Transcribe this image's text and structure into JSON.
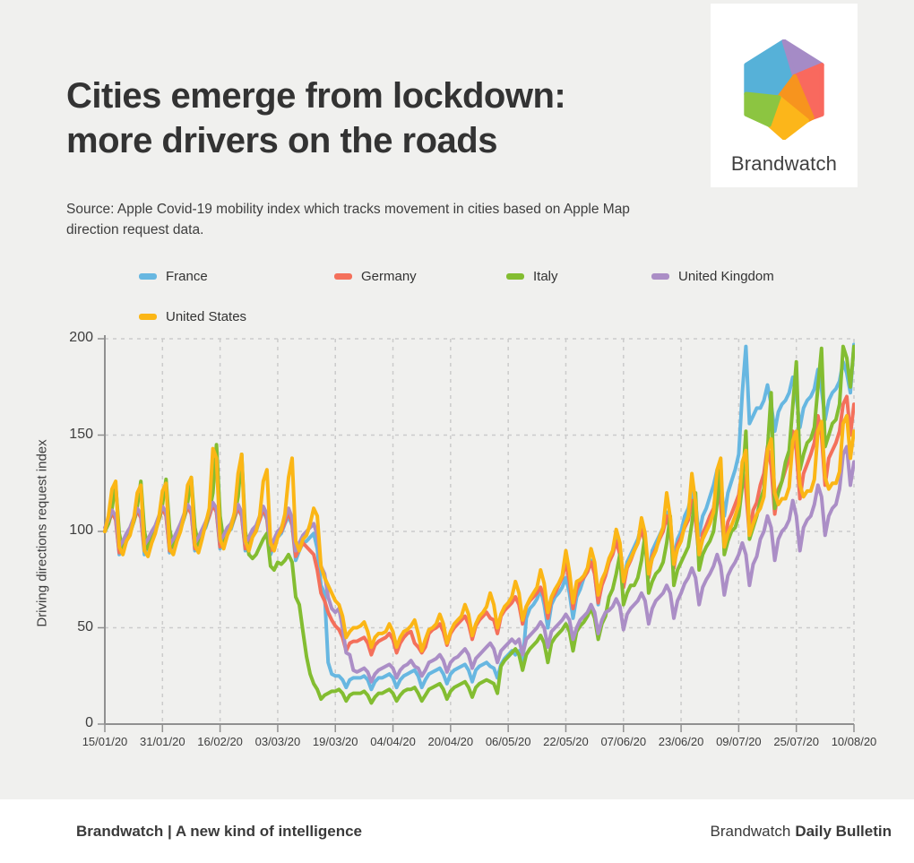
{
  "page": {
    "background": "#f0f0ee",
    "footer_background": "#ffffff"
  },
  "header": {
    "title_line1": "Cities emerge from lockdown:",
    "title_line2": "more drivers on the roads",
    "source": "Source: Apple Covid-19 mobility index which tracks movement in cities based on Apple Map direction request data."
  },
  "logo": {
    "brand_name": "Brandwatch",
    "facets": [
      {
        "name": "blue-facet",
        "color": "#56b1d8"
      },
      {
        "name": "purple-facet",
        "color": "#a58bc6"
      },
      {
        "name": "red-facet",
        "color": "#f9695e"
      },
      {
        "name": "orange-facet",
        "color": "#f7941e"
      },
      {
        "name": "yellow-facet",
        "color": "#fcb61a"
      },
      {
        "name": "green-facet",
        "color": "#8cc541"
      }
    ]
  },
  "chart_data": {
    "type": "line",
    "ylabel": "Driving directions request index",
    "ylim": [
      0,
      200
    ],
    "yticks": [
      0,
      50,
      100,
      150,
      200
    ],
    "x_tick_labels": [
      "15/01/20",
      "31/01/20",
      "16/02/20",
      "03/03/20",
      "19/03/20",
      "04/04/20",
      "20/04/20",
      "06/05/20",
      "22/05/20",
      "07/06/20",
      "23/06/20",
      "09/07/20",
      "25/07/20",
      "10/08/20"
    ],
    "x_tick_interval_days": 16,
    "x_days_total": 208,
    "frequency": "daily",
    "grid": true,
    "grid_color": "#cbcbcb",
    "axis_color": "#909090",
    "legend_position": "top",
    "series": [
      {
        "name": "France",
        "color": "#67b7e1",
        "values": [
          100,
          105,
          110,
          107,
          88,
          93,
          97,
          99,
          105,
          111,
          108,
          88,
          93,
          97,
          100,
          106,
          112,
          109,
          89,
          94,
          98,
          101,
          107,
          113,
          110,
          90,
          95,
          99,
          102,
          108,
          114,
          110,
          91,
          96,
          100,
          101,
          107,
          112,
          108,
          90,
          94,
          98,
          100,
          106,
          111,
          106,
          88,
          93,
          97,
          99,
          104,
          108,
          103,
          85,
          90,
          94,
          95,
          97,
          99,
          91,
          72,
          68,
          32,
          26,
          25,
          25,
          23,
          19,
          23,
          24,
          24,
          24,
          25,
          23,
          18,
          22,
          24,
          24,
          25,
          26,
          24,
          19,
          23,
          25,
          26,
          27,
          28,
          25,
          19,
          23,
          26,
          27,
          28,
          29,
          26,
          21,
          26,
          28,
          29,
          30,
          31,
          28,
          22,
          28,
          30,
          31,
          32,
          30,
          29,
          24,
          31,
          34,
          36,
          38,
          36,
          38,
          31,
          55,
          60,
          62,
          65,
          70,
          62,
          50,
          62,
          66,
          68,
          71,
          76,
          68,
          55,
          66,
          70,
          76,
          79,
          85,
          78,
          62,
          74,
          78,
          85,
          89,
          96,
          88,
          72,
          84,
          88,
          92,
          96,
          103,
          95,
          78,
          90,
          94,
          98,
          102,
          110,
          102,
          86,
          96,
          100,
          108,
          112,
          120,
          114,
          98,
          108,
          112,
          118,
          124,
          132,
          126,
          108,
          120,
          126,
          132,
          140,
          172,
          196,
          156,
          160,
          164,
          164,
          168,
          176,
          166,
          152,
          162,
          166,
          168,
          172,
          180,
          170,
          154,
          164,
          168,
          170,
          174,
          184,
          174,
          158,
          168,
          172,
          174,
          178,
          188,
          182,
          172,
          197
        ]
      },
      {
        "name": "Germany",
        "color": "#f4705b",
        "values": [
          100,
          104,
          110,
          106,
          89,
          93,
          97,
          100,
          105,
          111,
          107,
          90,
          94,
          98,
          101,
          106,
          112,
          108,
          90,
          94,
          98,
          102,
          107,
          113,
          109,
          91,
          95,
          99,
          103,
          108,
          114,
          110,
          92,
          96,
          100,
          102,
          107,
          113,
          108,
          91,
          95,
          99,
          101,
          106,
          112,
          107,
          90,
          94,
          98,
          100,
          105,
          110,
          104,
          87,
          91,
          94,
          92,
          90,
          88,
          80,
          68,
          64,
          58,
          54,
          51,
          49,
          45,
          38,
          42,
          43,
          43,
          44,
          45,
          42,
          36,
          41,
          43,
          44,
          45,
          47,
          44,
          37,
          42,
          45,
          47,
          48,
          42,
          40,
          37,
          40,
          47,
          49,
          50,
          52,
          48,
          41,
          47,
          50,
          52,
          54,
          56,
          52,
          44,
          51,
          54,
          56,
          58,
          55,
          54,
          47,
          56,
          59,
          61,
          63,
          66,
          62,
          52,
          61,
          64,
          66,
          68,
          71,
          66,
          55,
          65,
          68,
          72,
          76,
          84,
          74,
          60,
          70,
          74,
          76,
          79,
          84,
          78,
          63,
          72,
          77,
          84,
          88,
          95,
          88,
          71,
          81,
          85,
          90,
          94,
          101,
          94,
          76,
          87,
          91,
          96,
          100,
          108,
          100,
          81,
          93,
          97,
          102,
          106,
          116,
          107,
          86,
          99,
          103,
          108,
          112,
          124,
          114,
          92,
          105,
          109,
          114,
          119,
          132,
          122,
          98,
          111,
          115,
          124,
          130,
          144,
          134,
          109,
          122,
          126,
          132,
          138,
          152,
          142,
          117,
          130,
          135,
          140,
          146,
          160,
          150,
          124,
          138,
          142,
          146,
          152,
          166,
          170,
          150,
          166
        ]
      },
      {
        "name": "Italy",
        "color": "#83bd31",
        "values": [
          100,
          104,
          112,
          124,
          99,
          90,
          95,
          99,
          105,
          113,
          126,
          100,
          91,
          96,
          100,
          106,
          114,
          127,
          101,
          92,
          97,
          101,
          107,
          115,
          128,
          102,
          93,
          98,
          103,
          110,
          120,
          145,
          108,
          95,
          100,
          102,
          108,
          118,
          140,
          100,
          88,
          86,
          88,
          92,
          96,
          99,
          82,
          80,
          84,
          83,
          85,
          88,
          84,
          66,
          62,
          48,
          35,
          26,
          21,
          18,
          13,
          15,
          16,
          17,
          17,
          18,
          16,
          12,
          15,
          16,
          16,
          16,
          17,
          15,
          11,
          14,
          16,
          16,
          17,
          18,
          16,
          12,
          15,
          17,
          18,
          18,
          19,
          16,
          12,
          15,
          18,
          19,
          20,
          21,
          18,
          13,
          17,
          19,
          20,
          21,
          22,
          19,
          14,
          19,
          21,
          22,
          23,
          22,
          21,
          16,
          30,
          33,
          35,
          37,
          39,
          36,
          28,
          36,
          39,
          41,
          43,
          46,
          42,
          32,
          42,
          45,
          47,
          49,
          52,
          48,
          38,
          48,
          51,
          53,
          56,
          60,
          55,
          44,
          52,
          56,
          66,
          70,
          78,
          88,
          62,
          68,
          72,
          72,
          76,
          85,
          98,
          68,
          74,
          78,
          80,
          84,
          94,
          108,
          72,
          80,
          84,
          88,
          92,
          104,
          120,
          80,
          88,
          92,
          95,
          100,
          115,
          135,
          88,
          95,
          100,
          102,
          108,
          124,
          152,
          96,
          102,
          108,
          116,
          122,
          142,
          172,
          112,
          120,
          126,
          136,
          142,
          165,
          188,
          132,
          140,
          146,
          148,
          154,
          175,
          195,
          144,
          150,
          156,
          158,
          166,
          196,
          190,
          175,
          196
        ]
      },
      {
        "name": "United Kingdom",
        "color": "#ab8ec6",
        "values": [
          102,
          106,
          111,
          108,
          92,
          95,
          99,
          102,
          107,
          112,
          109,
          93,
          96,
          100,
          103,
          108,
          113,
          110,
          93,
          96,
          100,
          104,
          109,
          114,
          111,
          94,
          97,
          101,
          105,
          110,
          115,
          112,
          95,
          98,
          102,
          104,
          109,
          114,
          110,
          94,
          97,
          101,
          103,
          108,
          113,
          109,
          93,
          96,
          100,
          102,
          107,
          112,
          107,
          90,
          94,
          98,
          100,
          102,
          104,
          98,
          82,
          78,
          66,
          60,
          58,
          60,
          50,
          37,
          36,
          28,
          27,
          28,
          29,
          27,
          22,
          26,
          28,
          29,
          30,
          31,
          29,
          24,
          28,
          30,
          31,
          33,
          30,
          29,
          25,
          28,
          32,
          33,
          34,
          36,
          33,
          27,
          32,
          34,
          35,
          37,
          39,
          36,
          29,
          34,
          36,
          38,
          40,
          42,
          39,
          32,
          38,
          40,
          42,
          44,
          42,
          44,
          36,
          44,
          46,
          48,
          50,
          53,
          50,
          40,
          48,
          50,
          52,
          54,
          57,
          54,
          44,
          50,
          54,
          56,
          58,
          62,
          58,
          47,
          54,
          58,
          59,
          61,
          65,
          61,
          49,
          57,
          60,
          62,
          64,
          68,
          64,
          52,
          60,
          64,
          66,
          68,
          72,
          68,
          55,
          64,
          68,
          73,
          76,
          81,
          76,
          62,
          71,
          75,
          78,
          82,
          88,
          82,
          67,
          77,
          81,
          84,
          88,
          94,
          88,
          72,
          83,
          87,
          96,
          100,
          108,
          102,
          85,
          96,
          100,
          102,
          106,
          116,
          108,
          90,
          102,
          106,
          108,
          114,
          124,
          118,
          98,
          108,
          112,
          114,
          122,
          140,
          144,
          124,
          136
        ]
      },
      {
        "name": "United States",
        "color": "#fbb616",
        "values": [
          100,
          108,
          122,
          126,
          92,
          88,
          95,
          98,
          106,
          120,
          124,
          90,
          87,
          94,
          99,
          107,
          121,
          125,
          91,
          88,
          95,
          100,
          108,
          124,
          128,
          93,
          89,
          96,
          104,
          112,
          143,
          138,
          96,
          91,
          98,
          102,
          110,
          130,
          140,
          95,
          90,
          97,
          100,
          108,
          126,
          132,
          94,
          90,
          97,
          101,
          109,
          128,
          138,
          95,
          90,
          96,
          98,
          104,
          112,
          108,
          82,
          76,
          72,
          68,
          64,
          62,
          56,
          45,
          48,
          50,
          50,
          51,
          53,
          48,
          40,
          45,
          47,
          47,
          48,
          52,
          48,
          40,
          45,
          48,
          49,
          51,
          54,
          47,
          38,
          44,
          49,
          50,
          52,
          57,
          52,
          42,
          48,
          52,
          54,
          56,
          62,
          57,
          46,
          52,
          56,
          58,
          61,
          68,
          62,
          50,
          57,
          61,
          63,
          66,
          74,
          68,
          54,
          61,
          65,
          68,
          71,
          80,
          73,
          58,
          66,
          70,
          73,
          77,
          90,
          79,
          63,
          74,
          75,
          77,
          81,
          91,
          84,
          67,
          75,
          79,
          86,
          90,
          101,
          94,
          74,
          82,
          86,
          90,
          94,
          107,
          99,
          78,
          86,
          90,
          97,
          102,
          120,
          107,
          83,
          91,
          95,
          103,
          108,
          130,
          115,
          88,
          96,
          100,
          104,
          110,
          132,
          138,
          92,
          99,
          103,
          108,
          114,
          136,
          142,
          98,
          104,
          109,
          112,
          118,
          142,
          148,
          120,
          114,
          117,
          117,
          123,
          147,
          152,
          124,
          118,
          121,
          121,
          127,
          152,
          157,
          128,
          122,
          125,
          125,
          131,
          156,
          160,
          138,
          152
        ]
      }
    ]
  },
  "footer": {
    "left": "Brandwatch | A new kind of intelligence",
    "right_regular": "Brandwatch",
    "right_bold": "Daily Bulletin"
  }
}
